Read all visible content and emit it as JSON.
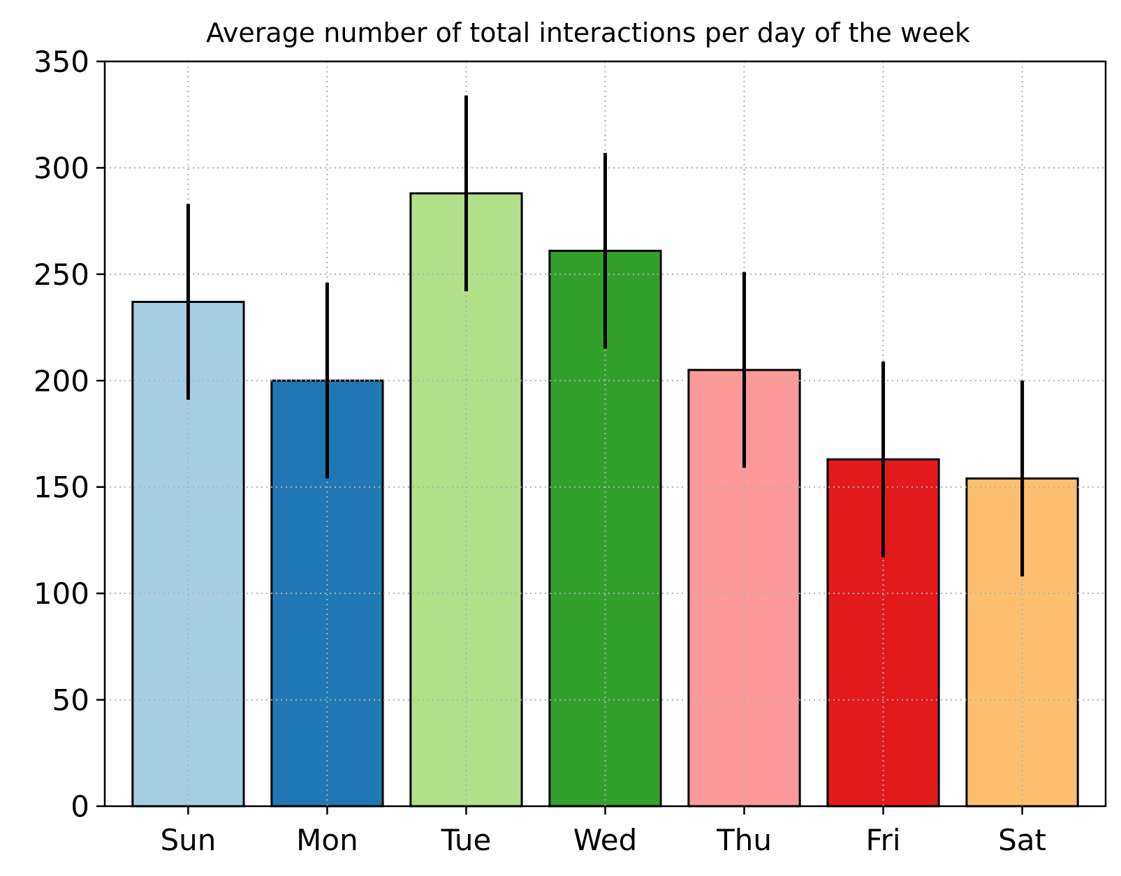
{
  "chart_data": {
    "type": "bar",
    "title": "Average number of total interactions per day of the week",
    "xlabel": "",
    "ylabel": "",
    "categories": [
      "Sun",
      "Mon",
      "Tue",
      "Wed",
      "Thu",
      "Fri",
      "Sat"
    ],
    "values": [
      237,
      200,
      288,
      261,
      205,
      163,
      154
    ],
    "error_low": [
      191,
      154,
      242,
      215,
      159,
      117,
      108
    ],
    "error_high": [
      283,
      246,
      334,
      307,
      251,
      209,
      200
    ],
    "colors": [
      "#a6cee3",
      "#1f78b4",
      "#b2df8a",
      "#33a02c",
      "#fb9a99",
      "#e31a1c",
      "#fdbf6f"
    ],
    "edge_color": "#000000",
    "error_color": "#000000",
    "ylim": [
      0,
      350
    ],
    "yticks": [
      0,
      50,
      100,
      150,
      200,
      250,
      300,
      350
    ],
    "ytick_labels": [
      "0",
      "50",
      "100",
      "150",
      "200",
      "250",
      "300",
      "350"
    ],
    "grid": true,
    "grid_style": "dotted",
    "grid_color": "#b0b0b0",
    "legend": "none"
  }
}
